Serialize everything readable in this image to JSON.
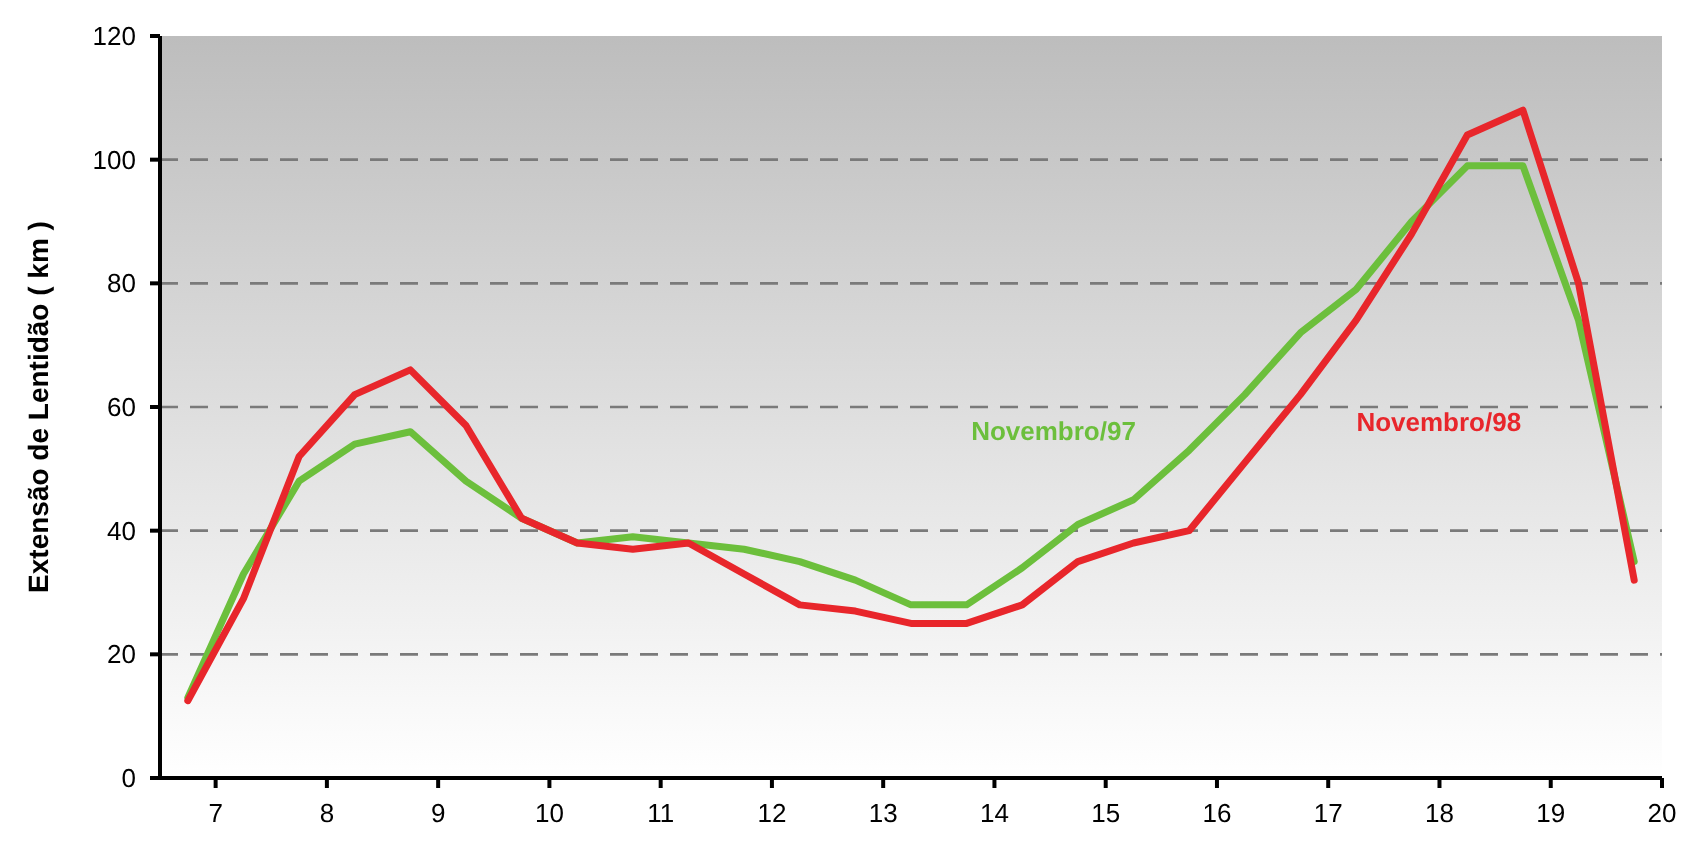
{
  "chart_data": {
    "type": "line",
    "ylabel": "Extensão de Lentidão ( km )",
    "x": [
      6.75,
      7.25,
      7.75,
      8.25,
      8.75,
      9.25,
      9.75,
      10.25,
      10.75,
      11.25,
      11.75,
      12.25,
      12.75,
      13.25,
      13.75,
      14.25,
      14.75,
      15.25,
      15.75,
      16.25,
      16.75,
      17.25,
      17.75,
      18.25,
      18.75,
      19.25,
      19.75
    ],
    "series": [
      {
        "name": "Novembro/97",
        "color": "#6cbf3c",
        "values": [
          13,
          33,
          48,
          54,
          56,
          48,
          42,
          38,
          39,
          38,
          37,
          35,
          32,
          28,
          28,
          34,
          41,
          45,
          53,
          62,
          72,
          79,
          90,
          99,
          99,
          74,
          35
        ]
      },
      {
        "name": "Novembro/98",
        "color": "#e8262b",
        "values": [
          12.5,
          29,
          52,
          62,
          66,
          57,
          42,
          38,
          37,
          38,
          33,
          28,
          27,
          25,
          25,
          28,
          35,
          38,
          40,
          51,
          62,
          74,
          88,
          104,
          108,
          80,
          32
        ]
      }
    ],
    "xlim": [
      6.5,
      20
    ],
    "xticks": [
      7,
      8,
      9,
      10,
      11,
      12,
      13,
      14,
      15,
      16,
      17,
      18,
      19,
      20
    ],
    "ylim": [
      0,
      120
    ],
    "yticks": [
      0,
      20,
      40,
      60,
      80,
      100,
      120
    ],
    "grid": "y",
    "line_style": "solid",
    "marker": "none"
  }
}
